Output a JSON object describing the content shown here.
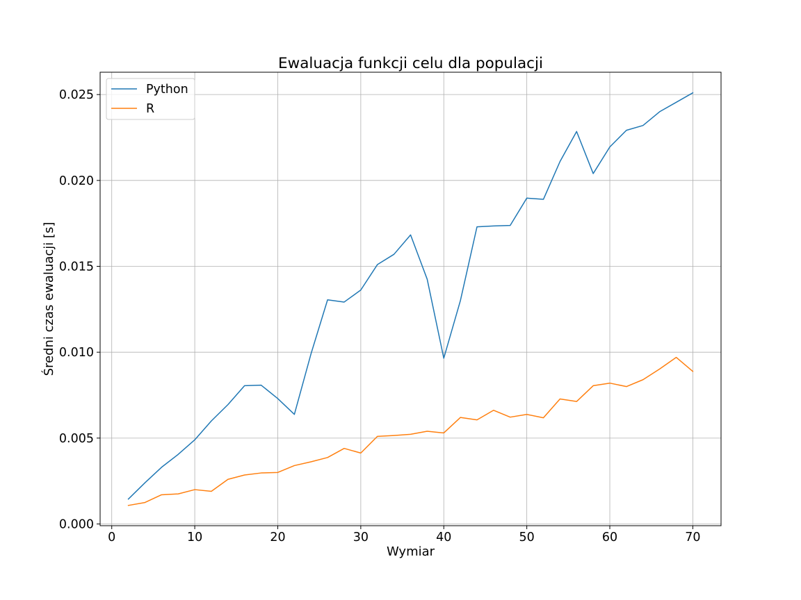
{
  "chart_data": {
    "type": "line",
    "title": "Ewaluacja funkcji celu dla populacji",
    "xlabel": "Wymiar",
    "ylabel": "Średni czas ewaluacji [s]",
    "xlim": [
      -1.4,
      73.4
    ],
    "ylim": [
      -0.0001,
      0.0263
    ],
    "xticks": [
      0,
      10,
      20,
      30,
      40,
      50,
      60,
      70
    ],
    "xtick_labels": [
      "0",
      "10",
      "20",
      "30",
      "40",
      "50",
      "60",
      "70"
    ],
    "yticks": [
      0.0,
      0.005,
      0.01,
      0.015,
      0.02,
      0.025
    ],
    "ytick_labels": [
      "0.000",
      "0.005",
      "0.010",
      "0.015",
      "0.020",
      "0.025"
    ],
    "grid": true,
    "legend_position": "top-left",
    "x": [
      2,
      4,
      6,
      8,
      10,
      12,
      14,
      16,
      18,
      20,
      22,
      24,
      26,
      28,
      30,
      32,
      34,
      36,
      38,
      40,
      42,
      44,
      46,
      48,
      50,
      52,
      54,
      56,
      58,
      60,
      62,
      64,
      66,
      68,
      70
    ],
    "series": [
      {
        "name": "Python",
        "color": "#1f77b4",
        "values": [
          0.00145,
          0.0024,
          0.0033,
          0.00405,
          0.0049,
          0.006,
          0.00695,
          0.00805,
          0.00808,
          0.0073,
          0.00638,
          0.0099,
          0.01305,
          0.01292,
          0.01362,
          0.0151,
          0.0157,
          0.01683,
          0.01425,
          0.00965,
          0.013,
          0.0173,
          0.01735,
          0.01738,
          0.01897,
          0.0189,
          0.0211,
          0.02285,
          0.0204,
          0.02195,
          0.02292,
          0.0232,
          0.024,
          0.02455,
          0.0251
        ]
      },
      {
        "name": "R",
        "color": "#ff7f0e",
        "values": [
          0.00108,
          0.00125,
          0.0017,
          0.00175,
          0.002,
          0.0019,
          0.0026,
          0.00285,
          0.00297,
          0.003,
          0.0034,
          0.00362,
          0.00387,
          0.0044,
          0.00413,
          0.0051,
          0.00515,
          0.00522,
          0.0054,
          0.0053,
          0.0062,
          0.00606,
          0.00662,
          0.00622,
          0.00638,
          0.00618,
          0.00728,
          0.00713,
          0.00805,
          0.0082,
          0.008,
          0.0084,
          0.00902,
          0.0097,
          0.00888
        ]
      }
    ]
  }
}
